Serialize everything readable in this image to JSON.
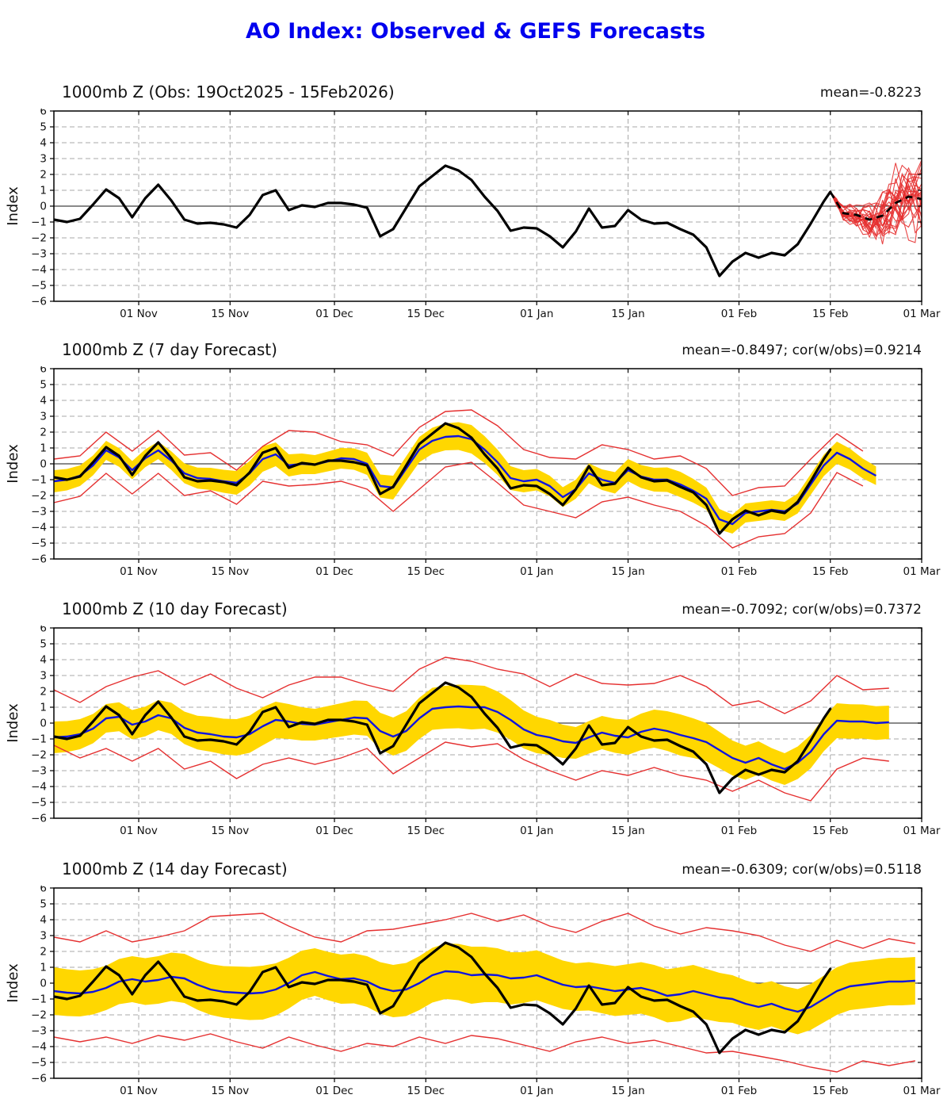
{
  "page_title": "AO Index: Observed & GEFS Forecasts",
  "colors": {
    "title_blue": "#0000ee",
    "obs_black": "#000000",
    "ensemble_red": "#e53030",
    "mean_blue": "#0f14e0",
    "band_yellow": "#ffd700",
    "grid_gray": "#aaaaaa",
    "zero_line": "#444444",
    "frame": "#000000",
    "text": "#111111"
  },
  "axis": {
    "ylabel": "Index",
    "ymin": -6,
    "ymax": 6,
    "ystep": 1,
    "x_max_day": 133,
    "x_ticks": [
      {
        "label": "01 Nov",
        "day": 13
      },
      {
        "label": "15 Nov",
        "day": 27
      },
      {
        "label": "01 Dec",
        "day": 43
      },
      {
        "label": "15 Dec",
        "day": 57
      },
      {
        "label": "01 Jan",
        "day": 74
      },
      {
        "label": "15 Jan",
        "day": 88
      },
      {
        "label": "01 Feb",
        "day": 105
      },
      {
        "label": "15 Feb",
        "day": 119
      },
      {
        "label": "01 Mar",
        "day": 133
      }
    ]
  },
  "chart_data": {
    "type": "line",
    "note": "AO index, day 0 = 19 Oct 2025; obs sampled every 2 days",
    "observed": {
      "start_day": 0,
      "step": 2,
      "values": [
        -0.85,
        -1.0,
        -0.8,
        0.1,
        1.05,
        0.5,
        -0.7,
        0.5,
        1.35,
        0.35,
        -0.85,
        -1.1,
        -1.05,
        -1.15,
        -1.35,
        -0.55,
        0.7,
        1.0,
        -0.25,
        0.05,
        -0.05,
        0.2,
        0.2,
        0.1,
        -0.1,
        -1.9,
        -1.45,
        -0.1,
        1.25,
        1.9,
        2.55,
        2.25,
        1.65,
        0.6,
        -0.3,
        -1.55,
        -1.35,
        -1.4,
        -1.9,
        -2.6,
        -1.6,
        -0.15,
        -1.35,
        -1.25,
        -0.25,
        -0.85,
        -1.1,
        -1.05,
        -1.45,
        -1.8,
        -2.6,
        -4.4,
        -3.5,
        -2.95,
        -3.25,
        -2.95,
        -3.1,
        -2.4,
        -1.1,
        0.3
      ],
      "end_day": 119,
      "end_value": 0.9
    },
    "panels": [
      {
        "id": "obs",
        "title": "1000mb Z (Obs: 19Oct2025 - 15Feb2026)",
        "stats": "mean=-0.8223",
        "ensemble": {
          "start_day": 119,
          "end_day": 133,
          "n_members": 24,
          "mean_days": [
            119,
            121,
            123,
            125,
            127,
            129,
            131,
            133
          ],
          "mean": [
            0.9,
            -0.45,
            -0.55,
            -0.85,
            -0.6,
            0.2,
            0.6,
            0.45
          ],
          "spread": [
            0.05,
            0.5,
            0.8,
            1.2,
            1.7,
            2.1,
            2.4,
            2.7
          ]
        }
      },
      {
        "id": "f7",
        "title": "1000mb Z (7 day Forecast)",
        "stats": "mean=-0.8497; cor(w/obs)=0.9214",
        "forecast": {
          "end_day": 126,
          "mean_step": 2,
          "mean": [
            -1.1,
            -1.0,
            -0.75,
            -0.1,
            0.85,
            0.4,
            -0.4,
            0.35,
            0.85,
            0.2,
            -0.6,
            -0.9,
            -0.95,
            -1.1,
            -1.2,
            -0.6,
            0.3,
            0.6,
            -0.1,
            0.0,
            -0.05,
            0.15,
            0.35,
            0.3,
            0.0,
            -1.4,
            -1.5,
            -0.3,
            0.9,
            1.45,
            1.7,
            1.75,
            1.55,
            0.9,
            0.1,
            -0.9,
            -1.1,
            -1.0,
            -1.4,
            -2.1,
            -1.6,
            -0.6,
            -1.0,
            -1.2,
            -0.4,
            -0.8,
            -1.0,
            -1.0,
            -1.3,
            -1.7,
            -2.2,
            -3.5,
            -3.8,
            -3.1,
            -3.0,
            -2.9,
            -3.0,
            -2.5,
            -1.3,
            -0.1,
            0.7,
            0.3,
            -0.3,
            -0.75
          ],
          "band_step": 8,
          "band_hw": [
            0.7,
            0.6,
            0.55,
            0.7,
            0.8,
            0.6,
            0.7,
            0.8,
            0.9,
            0.7,
            0.6,
            0.7,
            0.8,
            0.6,
            0.6,
            0.7,
            0.55
          ],
          "env_step": 4,
          "env_upper": [
            0.3,
            0.5,
            2.0,
            0.8,
            2.1,
            0.55,
            0.7,
            -0.4,
            1.1,
            2.1,
            2.0,
            1.4,
            1.2,
            0.5,
            2.3,
            3.3,
            3.4,
            2.4,
            0.9,
            0.4,
            0.3,
            1.2,
            0.9,
            0.3,
            0.5,
            -0.3,
            -2.0,
            -1.5,
            -1.4,
            0.3,
            1.9,
            0.8,
            0.55
          ],
          "env_lower": [
            -2.45,
            -2.05,
            -0.6,
            -1.9,
            -0.6,
            -2.0,
            -1.7,
            -2.55,
            -1.1,
            -1.4,
            -1.3,
            -1.1,
            -1.6,
            -3.0,
            -1.6,
            -0.2,
            0.1,
            -1.2,
            -2.6,
            -3.0,
            -3.4,
            -2.4,
            -2.1,
            -2.6,
            -3.0,
            -3.9,
            -5.3,
            -4.6,
            -4.4,
            -3.1,
            -0.55,
            -1.4,
            -1.9
          ]
        }
      },
      {
        "id": "f10",
        "title": "1000mb Z (10 day Forecast)",
        "stats": "mean=-0.7092; cor(w/obs)=0.7372",
        "forecast": {
          "end_day": 128,
          "mean_step": 2,
          "mean": [
            -0.9,
            -0.85,
            -0.7,
            -0.35,
            0.3,
            0.4,
            -0.1,
            0.1,
            0.5,
            0.3,
            -0.3,
            -0.6,
            -0.7,
            -0.85,
            -0.9,
            -0.7,
            -0.2,
            0.2,
            0.1,
            -0.05,
            -0.1,
            0.05,
            0.2,
            0.35,
            0.3,
            -0.5,
            -0.85,
            -0.5,
            0.3,
            0.9,
            1.0,
            1.05,
            1.0,
            1.0,
            0.7,
            0.2,
            -0.4,
            -0.75,
            -0.9,
            -1.15,
            -1.25,
            -0.9,
            -0.6,
            -0.8,
            -0.9,
            -0.55,
            -0.35,
            -0.5,
            -0.75,
            -0.95,
            -1.2,
            -1.7,
            -2.2,
            -2.5,
            -2.2,
            -2.6,
            -2.9,
            -2.5,
            -1.8,
            -0.7,
            0.15,
            0.1,
            0.1,
            0.0,
            0.05
          ],
          "band_step": 8,
          "band_hw": [
            1.0,
            0.9,
            0.95,
            1.1,
            1.2,
            1.0,
            1.1,
            1.3,
            1.4,
            1.2,
            1.0,
            1.1,
            1.3,
            1.1,
            1.0,
            1.1,
            1.05
          ],
          "env_step": 4,
          "env_upper": [
            2.1,
            1.3,
            2.3,
            2.9,
            3.3,
            2.4,
            3.1,
            2.2,
            1.6,
            2.4,
            2.9,
            2.9,
            2.4,
            2.0,
            3.4,
            4.15,
            3.9,
            3.4,
            3.1,
            2.3,
            3.1,
            2.5,
            2.4,
            2.5,
            3.0,
            2.3,
            1.1,
            1.4,
            0.6,
            1.4,
            3.0,
            2.1,
            2.2
          ],
          "env_lower": [
            -1.4,
            -2.2,
            -1.6,
            -2.4,
            -1.6,
            -2.9,
            -2.4,
            -3.5,
            -2.6,
            -2.2,
            -2.6,
            -2.2,
            -1.6,
            -3.2,
            -2.2,
            -1.2,
            -1.5,
            -1.3,
            -2.3,
            -3.0,
            -3.6,
            -3.0,
            -3.3,
            -2.8,
            -3.3,
            -3.6,
            -4.3,
            -3.6,
            -4.4,
            -4.9,
            -2.9,
            -2.2,
            -2.4
          ]
        }
      },
      {
        "id": "f14",
        "title": "1000mb Z (14 day Forecast)",
        "stats": "mean=-0.6309; cor(w/obs)=0.5118",
        "forecast": {
          "end_day": 132,
          "mean_step": 2,
          "mean": [
            -0.5,
            -0.6,
            -0.65,
            -0.55,
            -0.3,
            0.1,
            0.25,
            0.1,
            0.2,
            0.4,
            0.3,
            -0.1,
            -0.4,
            -0.55,
            -0.6,
            -0.65,
            -0.6,
            -0.4,
            0.0,
            0.5,
            0.7,
            0.45,
            0.25,
            0.3,
            0.1,
            -0.3,
            -0.5,
            -0.4,
            0.0,
            0.5,
            0.75,
            0.7,
            0.5,
            0.55,
            0.5,
            0.3,
            0.35,
            0.5,
            0.2,
            -0.1,
            -0.25,
            -0.2,
            -0.35,
            -0.5,
            -0.4,
            -0.3,
            -0.5,
            -0.8,
            -0.7,
            -0.5,
            -0.7,
            -0.9,
            -1.0,
            -1.3,
            -1.5,
            -1.3,
            -1.6,
            -1.8,
            -1.5,
            -1.0,
            -0.5,
            -0.2,
            -0.1,
            0.0,
            0.1,
            0.1,
            0.15
          ],
          "band_step": 8,
          "band_hw": [
            1.5,
            1.4,
            1.5,
            1.6,
            1.7,
            1.5,
            1.6,
            1.7,
            1.8,
            1.6,
            1.5,
            1.6,
            1.7,
            1.5,
            1.4,
            1.5,
            1.5
          ],
          "env_step": 4,
          "env_upper": [
            2.9,
            2.6,
            3.3,
            2.6,
            2.9,
            3.3,
            4.2,
            4.3,
            4.4,
            3.6,
            2.9,
            2.6,
            3.3,
            3.4,
            3.7,
            4.0,
            4.4,
            3.9,
            4.3,
            3.6,
            3.2,
            3.9,
            4.4,
            3.6,
            3.1,
            3.5,
            3.3,
            3.0,
            2.4,
            2.0,
            2.7,
            2.2,
            2.8,
            2.5
          ],
          "env_lower": [
            -3.4,
            -3.7,
            -3.4,
            -3.8,
            -3.3,
            -3.6,
            -3.2,
            -3.7,
            -4.1,
            -3.4,
            -3.9,
            -4.3,
            -3.8,
            -4.0,
            -3.4,
            -3.8,
            -3.3,
            -3.5,
            -3.9,
            -4.3,
            -3.7,
            -3.4,
            -3.8,
            -3.6,
            -4.0,
            -4.4,
            -4.3,
            -4.6,
            -4.9,
            -5.3,
            -5.6,
            -4.9,
            -5.2,
            -4.9
          ]
        }
      }
    ]
  }
}
